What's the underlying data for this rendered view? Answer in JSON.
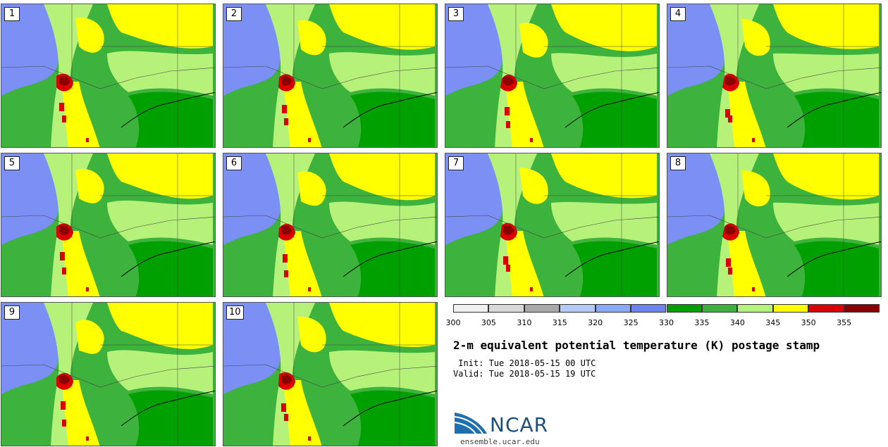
{
  "title": "2-m equivalent potential temperature (K) postage stamp",
  "init_time": " Init: Tue 2018-05-15 00 UTC",
  "valid_time": "Valid: Tue 2018-05-15 19 UTC",
  "logo": {
    "wordmark": "NCAR",
    "url": "ensemble.ucar.edu"
  },
  "members": [
    "1",
    "2",
    "3",
    "4",
    "5",
    "6",
    "7",
    "8",
    "9",
    "10"
  ],
  "colors": {
    "cold": "#7b8ff5",
    "green_dark": "#00a000",
    "green_mid": "#3db33d",
    "green_light": "#b6f27a",
    "yellow": "#ffff00",
    "red": "#dd0000",
    "dark_red": "#8b0000"
  },
  "chart_data": {
    "type": "heatmap",
    "title": "2-m equivalent potential temperature (K) postage stamp",
    "colorbar": {
      "ticks": [
        "300",
        "305",
        "310",
        "315",
        "320",
        "325",
        "330",
        "335",
        "340",
        "345",
        "350",
        "355"
      ],
      "bins": [
        {
          "from": 300,
          "to": 305,
          "color": "#f0f0f0"
        },
        {
          "from": 305,
          "to": 310,
          "color": "#d8d8d8"
        },
        {
          "from": 310,
          "to": 315,
          "color": "#a8a8a8"
        },
        {
          "from": 315,
          "to": 320,
          "color": "#b4c8fa"
        },
        {
          "from": 320,
          "to": 325,
          "color": "#8ca8fa"
        },
        {
          "from": 325,
          "to": 330,
          "color": "#6e82f0"
        },
        {
          "from": 330,
          "to": 335,
          "color": "#00a000"
        },
        {
          "from": 335,
          "to": 340,
          "color": "#3db33d"
        },
        {
          "from": 340,
          "to": 345,
          "color": "#b6f27a"
        },
        {
          "from": 345,
          "to": 350,
          "color": "#ffff00"
        },
        {
          "from": 350,
          "to": 355,
          "color": "#dd0000"
        },
        {
          "from": 355,
          "to": 360,
          "color": "#8b0000"
        }
      ]
    }
  }
}
